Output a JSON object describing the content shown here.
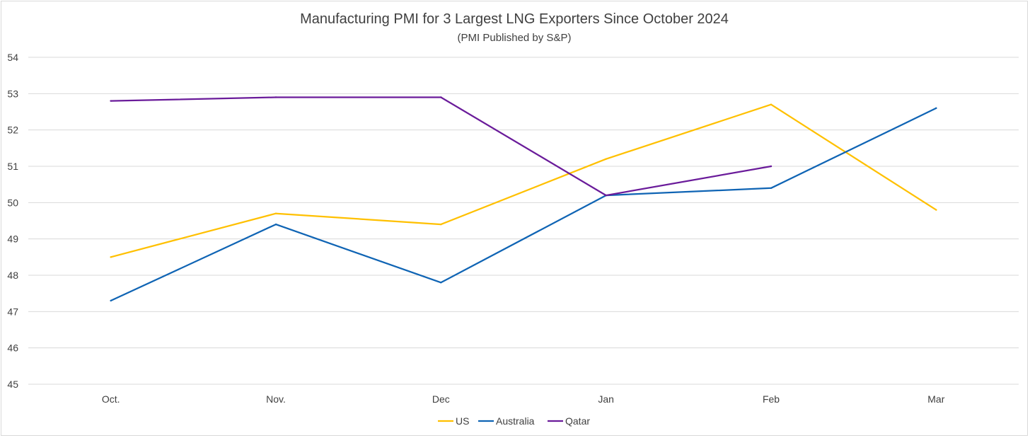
{
  "chart_data": {
    "type": "line",
    "title": "Manufacturing PMI for 3 Largest LNG Exporters Since October 2024",
    "subtitle": "(PMI Published by S&P)",
    "categories": [
      "Oct.",
      "Nov.",
      "Dec",
      "Jan",
      "Feb",
      "Mar"
    ],
    "ylim": [
      45,
      54
    ],
    "yticks": [
      45,
      46,
      47,
      48,
      49,
      50,
      51,
      52,
      53,
      54
    ],
    "grid": true,
    "legend_position": "bottom",
    "series": [
      {
        "name": "US",
        "color": "#FFC000",
        "values": [
          48.5,
          49.7,
          49.4,
          51.2,
          52.7,
          49.8
        ]
      },
      {
        "name": "Australia",
        "color": "#0F64B4",
        "values": [
          47.3,
          49.4,
          47.8,
          50.2,
          50.4,
          52.6
        ]
      },
      {
        "name": "Qatar",
        "color": "#6A1B9A",
        "values": [
          52.8,
          52.9,
          52.9,
          50.2,
          51.0,
          null
        ]
      }
    ]
  }
}
